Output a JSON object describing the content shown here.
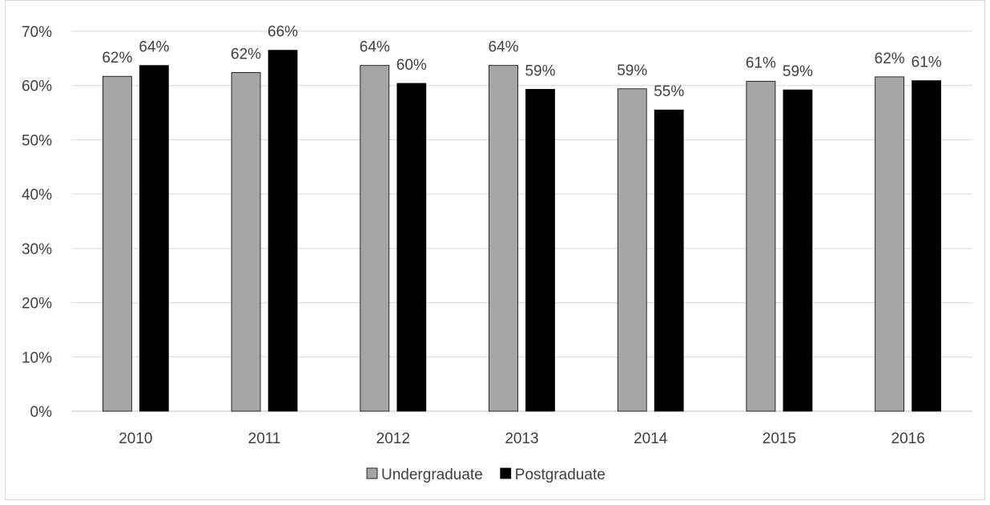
{
  "chart_data": {
    "type": "bar",
    "title": "",
    "xlabel": "",
    "ylabel": "",
    "categories": [
      "2010",
      "2011",
      "2012",
      "2013",
      "2014",
      "2015",
      "2016"
    ],
    "ylim": [
      0,
      70
    ],
    "yticks": [
      "0%",
      "10%",
      "20%",
      "30%",
      "40%",
      "50%",
      "60%",
      "70%"
    ],
    "ytick_values": [
      0,
      10,
      20,
      30,
      40,
      50,
      60,
      70
    ],
    "grid": true,
    "legend_position": "bottom",
    "series": [
      {
        "name": "Undergraduate",
        "color": "#a6a6a6",
        "values": [
          61.7,
          62.4,
          63.7,
          63.7,
          59.4,
          60.8,
          61.6
        ],
        "labels": [
          "62%",
          "62%",
          "64%",
          "64%",
          "59%",
          "61%",
          "62%"
        ]
      },
      {
        "name": "Postgraduate",
        "color": "#000000",
        "values": [
          63.7,
          66.5,
          60.4,
          59.3,
          55.5,
          59.2,
          60.9
        ],
        "labels": [
          "64%",
          "66%",
          "60%",
          "59%",
          "55%",
          "59%",
          "61%"
        ]
      }
    ]
  }
}
